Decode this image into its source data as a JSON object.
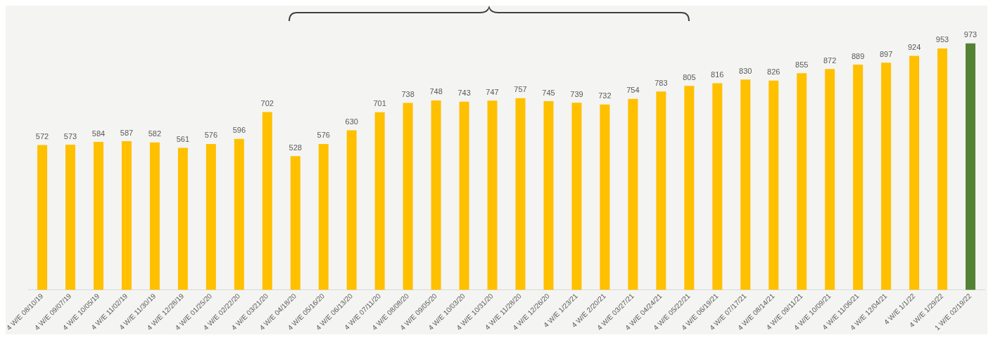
{
  "chart_data": {
    "type": "bar",
    "categories": [
      "4 W/E 08/10/19",
      "4 W/E 09/07/19",
      "4 W/E 10/05/19",
      "4 W/E 11/02/19",
      "4 W/E 11/30/19",
      "4 W/E 12/28/19",
      "4 W/E 01/25/20",
      "4 W/E 02/22/20",
      "4 W/E 03/21/20",
      "4 W/E 04/18/20",
      "4 W/E 05/16/20",
      "4 W/E 06/13/20",
      "4 W/E 07/11/20",
      "4 W/E 08/08/20",
      "4 W/E 09/05/20",
      "4 W/E 10/03/20",
      "4 W/E 10/31/20",
      "4 W/E 11/28/20",
      "4 W/E 12/26/20",
      "4 W/E 1/23/21",
      "4 W/E 2/20/21",
      "4 W/E 03/27/21",
      "4 W/E 04/24/21",
      "4 W/E 05/22/21",
      "4 W/E 06/19/21",
      "4 W/E 07/17/21",
      "4 W/E 08/14/21",
      "4 W/E 09/11/21",
      "4 W/E 10/09/21",
      "4 W/E 11/06/21",
      "4 W/E 12/04/21",
      "4 W/E 1/1/22",
      "4 W/E 1/29/22",
      "1 W/E 02/19/22"
    ],
    "values": [
      572,
      573,
      584,
      587,
      582,
      561,
      576,
      596,
      702,
      528,
      576,
      630,
      701,
      738,
      748,
      743,
      747,
      757,
      745,
      739,
      732,
      754,
      783,
      805,
      816,
      830,
      826,
      855,
      872,
      889,
      897,
      924,
      953,
      973
    ],
    "colors": [
      "#ffc000",
      "#ffc000",
      "#ffc000",
      "#ffc000",
      "#ffc000",
      "#ffc000",
      "#ffc000",
      "#ffc000",
      "#ffc000",
      "#ffc000",
      "#ffc000",
      "#ffc000",
      "#ffc000",
      "#ffc000",
      "#ffc000",
      "#ffc000",
      "#ffc000",
      "#ffc000",
      "#ffc000",
      "#ffc000",
      "#ffc000",
      "#ffc000",
      "#ffc000",
      "#ffc000",
      "#ffc000",
      "#ffc000",
      "#ffc000",
      "#ffc000",
      "#ffc000",
      "#ffc000",
      "#ffc000",
      "#ffc000",
      "#ffc000",
      "#548235"
    ],
    "tick_labels": "x",
    "data_labels": true,
    "grid": false,
    "legend": false
  }
}
